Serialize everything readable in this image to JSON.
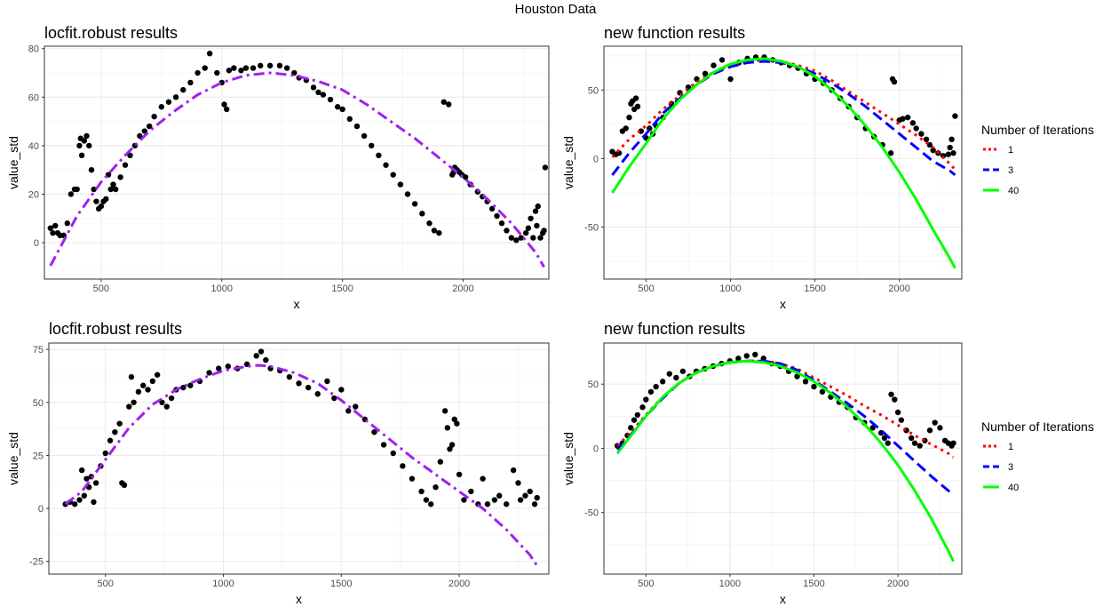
{
  "figure_title": "Houston Data",
  "chart_data": [
    {
      "type": "scatter",
      "title": "locfit.robust results",
      "xlabel": "x",
      "ylabel": "value_std",
      "xlim": [
        265,
        2355
      ],
      "ylim": [
        -15,
        81
      ],
      "xticks": [
        500,
        1000,
        1500,
        2000
      ],
      "yticks": [
        0,
        20,
        40,
        60,
        80
      ],
      "grid": true,
      "points": {
        "color": "#000000",
        "x": [
          290,
          300,
          310,
          320,
          330,
          345,
          360,
          375,
          390,
          400,
          410,
          415,
          420,
          430,
          440,
          450,
          460,
          470,
          480,
          490,
          500,
          510,
          520,
          530,
          540,
          550,
          560,
          580,
          600,
          620,
          640,
          660,
          680,
          700,
          720,
          750,
          780,
          810,
          840,
          870,
          900,
          930,
          950,
          980,
          1000,
          1010,
          1020,
          1030,
          1050,
          1080,
          1100,
          1130,
          1160,
          1200,
          1240,
          1270,
          1300,
          1320,
          1350,
          1380,
          1400,
          1420,
          1450,
          1480,
          1500,
          1530,
          1560,
          1590,
          1620,
          1650,
          1680,
          1710,
          1740,
          1770,
          1800,
          1830,
          1860,
          1880,
          1900,
          1920,
          1940,
          1955,
          1960,
          1965,
          1975,
          1985,
          1995,
          2010,
          2030,
          2060,
          2080,
          2100,
          2120,
          2140,
          2160,
          2180,
          2200,
          2220,
          2240,
          2260,
          2270,
          2280,
          2290,
          2300,
          2305,
          2310,
          2320,
          2330,
          2335,
          2340
        ],
        "y": [
          6,
          4,
          7,
          4,
          3,
          3,
          8,
          20,
          22,
          22,
          40,
          43,
          36,
          42,
          44,
          40,
          30,
          22,
          17,
          14,
          15,
          17,
          18,
          28,
          22,
          24,
          22,
          27,
          32,
          36,
          40,
          44,
          46,
          48,
          52,
          56,
          58,
          60,
          63,
          66,
          70,
          72,
          78,
          70,
          66,
          57,
          55,
          71,
          72,
          71,
          72,
          72,
          73,
          73,
          73,
          72,
          70,
          68,
          67,
          64,
          62,
          61,
          59,
          56,
          55,
          51,
          48,
          44,
          40,
          36,
          32,
          28,
          24,
          20,
          16,
          12,
          8,
          5,
          4,
          58,
          57,
          28,
          29,
          31,
          30,
          29,
          28,
          27,
          24,
          21,
          19,
          17,
          14,
          11,
          8,
          5,
          2,
          1,
          2,
          4,
          6,
          10,
          2,
          13,
          7,
          15,
          2,
          4,
          5,
          31
        ],
        "note": "approximate trace of dense observations"
      },
      "series": [
        {
          "name": "",
          "style": "dotdash",
          "color": "#a020f0",
          "x": [
            290,
            400,
            500,
            600,
            700,
            800,
            900,
            1000,
            1100,
            1200,
            1300,
            1400,
            1500,
            1600,
            1700,
            1800,
            1900,
            2000,
            2100,
            2200,
            2300,
            2335
          ],
          "y": [
            -9.5,
            11,
            25,
            36,
            46,
            54,
            61,
            66,
            69,
            70,
            69,
            66.5,
            63,
            57,
            50,
            43,
            35,
            27,
            18,
            8,
            -4,
            -10
          ]
        }
      ]
    },
    {
      "type": "scatter",
      "title": "new function results",
      "xlabel": "x",
      "ylabel": "value_std",
      "xlim": [
        250,
        2370
      ],
      "ylim": [
        -88,
        82
      ],
      "xticks": [
        500,
        1000,
        1500,
        2000
      ],
      "yticks": [
        -50,
        0,
        50
      ],
      "grid": true,
      "points": {
        "color": "#000000",
        "x": [
          300,
          320,
          340,
          360,
          380,
          400,
          410,
          420,
          430,
          440,
          450,
          470,
          500,
          520,
          540,
          560,
          600,
          650,
          700,
          750,
          800,
          850,
          900,
          950,
          1000,
          1050,
          1100,
          1150,
          1200,
          1250,
          1300,
          1350,
          1400,
          1450,
          1500,
          1550,
          1600,
          1650,
          1700,
          1750,
          1800,
          1850,
          1900,
          1950,
          1960,
          1970,
          2000,
          2020,
          2050,
          2080,
          2100,
          2130,
          2160,
          2180,
          2200,
          2230,
          2260,
          2290,
          2300,
          2310,
          2320,
          2330
        ],
        "y": [
          5,
          3,
          4,
          20,
          22,
          30,
          40,
          42,
          36,
          44,
          38,
          20,
          15,
          22,
          18,
          24,
          30,
          40,
          48,
          52,
          58,
          62,
          68,
          72,
          58,
          70,
          73,
          74,
          74,
          72,
          70,
          68,
          66,
          62,
          58,
          55,
          50,
          44,
          38,
          30,
          22,
          16,
          10,
          4,
          58,
          56,
          28,
          29,
          30,
          26,
          22,
          18,
          14,
          10,
          6,
          4,
          2,
          3,
          8,
          14,
          4,
          31
        ]
      },
      "legend": {
        "title": "Number of Iterations",
        "position": "right"
      },
      "series": [
        {
          "name": "1",
          "style": "dotted",
          "color": "#ff0000",
          "x": [
            300,
            400,
            500,
            600,
            700,
            800,
            900,
            1000,
            1100,
            1200,
            1300,
            1400,
            1500,
            1600,
            1700,
            1800,
            1900,
            2000,
            2100,
            2200,
            2300,
            2330
          ],
          "y": [
            1,
            14,
            24,
            36,
            46,
            56,
            63,
            68,
            71,
            72,
            71,
            68,
            64,
            57,
            49,
            41,
            33,
            25,
            17,
            8,
            -4,
            -8
          ]
        },
        {
          "name": "3",
          "style": "dashed",
          "color": "#0000ff",
          "x": [
            300,
            400,
            500,
            600,
            700,
            800,
            900,
            1000,
            1100,
            1200,
            1300,
            1400,
            1500,
            1600,
            1700,
            1800,
            1900,
            2000,
            2100,
            2200,
            2300,
            2330
          ],
          "y": [
            -12,
            4,
            18,
            33,
            44,
            54,
            62,
            67,
            70,
            71,
            70,
            67,
            62,
            55,
            47,
            38,
            28,
            18,
            8,
            -2,
            -9,
            -12
          ]
        },
        {
          "name": "40",
          "style": "solid",
          "color": "#00ff00",
          "x": [
            300,
            400,
            500,
            600,
            700,
            800,
            900,
            1000,
            1100,
            1200,
            1300,
            1400,
            1500,
            1600,
            1700,
            1800,
            1900,
            2000,
            2100,
            2200,
            2300,
            2330
          ],
          "y": [
            -25,
            -6,
            11,
            29,
            43,
            54,
            63,
            69,
            72,
            73,
            71,
            67,
            60,
            50,
            38,
            24,
            8,
            -10,
            -30,
            -52,
            -73,
            -80
          ]
        }
      ]
    },
    {
      "type": "scatter",
      "title": "locfit.robust results",
      "xlabel": "x",
      "ylabel": "value_std",
      "xlim": [
        260,
        2380
      ],
      "ylim": [
        -31,
        78
      ],
      "xticks": [
        500,
        1000,
        1500,
        2000
      ],
      "yticks": [
        -25,
        0,
        25,
        50,
        75
      ],
      "grid": true,
      "points": {
        "color": "#000000",
        "x": [
          330,
          350,
          370,
          390,
          400,
          410,
          420,
          430,
          440,
          450,
          460,
          480,
          500,
          520,
          540,
          560,
          570,
          580,
          600,
          610,
          620,
          640,
          660,
          680,
          700,
          720,
          740,
          760,
          780,
          800,
          830,
          860,
          900,
          940,
          980,
          1020,
          1060,
          1100,
          1140,
          1160,
          1180,
          1200,
          1240,
          1280,
          1320,
          1360,
          1400,
          1440,
          1470,
          1500,
          1530,
          1560,
          1600,
          1640,
          1680,
          1720,
          1760,
          1800,
          1840,
          1860,
          1880,
          1900,
          1920,
          1940,
          1950,
          1960,
          1970,
          1980,
          1990,
          2000,
          2020,
          2050,
          2080,
          2100,
          2120,
          2150,
          2170,
          2200,
          2230,
          2250,
          2260,
          2280,
          2300,
          2320,
          2330
        ],
        "y": [
          2,
          3,
          2,
          4,
          18,
          6,
          14,
          10,
          15,
          3,
          12,
          20,
          26,
          32,
          36,
          40,
          12,
          11,
          48,
          62,
          50,
          55,
          58,
          56,
          60,
          63,
          50,
          48,
          52,
          56,
          57,
          58,
          60,
          64,
          66,
          67,
          66,
          68,
          72,
          74,
          70,
          66,
          65,
          62,
          59,
          57,
          54,
          60,
          52,
          56,
          46,
          48,
          42,
          36,
          30,
          26,
          20,
          14,
          8,
          4,
          2,
          10,
          22,
          46,
          38,
          28,
          30,
          42,
          40,
          16,
          4,
          8,
          2,
          14,
          2,
          4,
          6,
          2,
          18,
          12,
          4,
          6,
          8,
          2,
          5
        ],
        "note": "approximate trace of dense observations"
      },
      "series": [
        {
          "name": "",
          "style": "dotdash",
          "color": "#a020f0",
          "x": [
            330,
            400,
            500,
            600,
            700,
            800,
            900,
            1000,
            1100,
            1150,
            1200,
            1300,
            1400,
            1500,
            1600,
            1700,
            1800,
            1900,
            2000,
            2100,
            2200,
            2300,
            2330
          ],
          "y": [
            2,
            8,
            23,
            38,
            49,
            56,
            61,
            65,
            67,
            67.5,
            67,
            64,
            59,
            51,
            42,
            33,
            24,
            16,
            8,
            0,
            -10,
            -22,
            -27
          ]
        }
      ]
    },
    {
      "type": "scatter",
      "title": "new function results",
      "xlabel": "x",
      "ylabel": "value_std",
      "xlim": [
        250,
        2380
      ],
      "ylim": [
        -98,
        82
      ],
      "xticks": [
        500,
        1000,
        1500,
        2000
      ],
      "yticks": [
        -50,
        0,
        50
      ],
      "grid": true,
      "points": {
        "color": "#000000",
        "x": [
          330,
          360,
          390,
          410,
          430,
          450,
          480,
          500,
          530,
          560,
          600,
          640,
          680,
          720,
          760,
          800,
          850,
          900,
          950,
          1000,
          1050,
          1100,
          1150,
          1200,
          1250,
          1300,
          1350,
          1400,
          1450,
          1500,
          1550,
          1600,
          1650,
          1700,
          1750,
          1800,
          1850,
          1900,
          1920,
          1940,
          1960,
          1980,
          2000,
          2020,
          2050,
          2080,
          2100,
          2130,
          2160,
          2190,
          2220,
          2250,
          2280,
          2300,
          2320,
          2330
        ],
        "y": [
          2,
          4,
          10,
          16,
          22,
          26,
          32,
          38,
          44,
          48,
          52,
          58,
          55,
          60,
          56,
          60,
          62,
          64,
          66,
          68,
          70,
          72,
          73,
          70,
          66,
          64,
          60,
          56,
          52,
          48,
          44,
          40,
          36,
          32,
          24,
          20,
          16,
          12,
          8,
          4,
          42,
          38,
          28,
          22,
          14,
          8,
          4,
          2,
          6,
          14,
          20,
          16,
          6,
          4,
          2,
          4
        ]
      },
      "legend": {
        "title": "Number of Iterations",
        "position": "right"
      },
      "series": [
        {
          "name": "1",
          "style": "dotted",
          "color": "#ff0000",
          "x": [
            330,
            400,
            500,
            600,
            700,
            800,
            900,
            1000,
            1100,
            1200,
            1300,
            1400,
            1500,
            1600,
            1700,
            1800,
            1900,
            2000,
            2100,
            2200,
            2300,
            2330
          ],
          "y": [
            2,
            11,
            26,
            40,
            51,
            59,
            64,
            67,
            68,
            68,
            66,
            62,
            55,
            48,
            41,
            33,
            26,
            18,
            10,
            3,
            -4,
            -7
          ]
        },
        {
          "name": "3",
          "style": "dashed",
          "color": "#0000ff",
          "x": [
            330,
            400,
            500,
            600,
            700,
            800,
            900,
            1000,
            1100,
            1200,
            1300,
            1400,
            1500,
            1600,
            1700,
            1800,
            1900,
            2000,
            2100,
            2200,
            2300,
            2330
          ],
          "y": [
            -1,
            9,
            25,
            39,
            51,
            59,
            64,
            67,
            68,
            68,
            66,
            61,
            53,
            44,
            35,
            25,
            14,
            2,
            -10,
            -22,
            -33,
            -36
          ]
        },
        {
          "name": "40",
          "style": "solid",
          "color": "#00ff00",
          "x": [
            330,
            400,
            500,
            600,
            700,
            800,
            900,
            1000,
            1100,
            1200,
            1300,
            1400,
            1500,
            1600,
            1700,
            1800,
            1900,
            2000,
            2100,
            2200,
            2300,
            2330
          ],
          "y": [
            -4,
            8,
            25,
            40,
            51,
            59,
            64,
            67,
            68,
            67,
            64,
            59,
            52,
            43,
            32,
            19,
            4,
            -13,
            -33,
            -55,
            -80,
            -88
          ]
        }
      ]
    }
  ]
}
